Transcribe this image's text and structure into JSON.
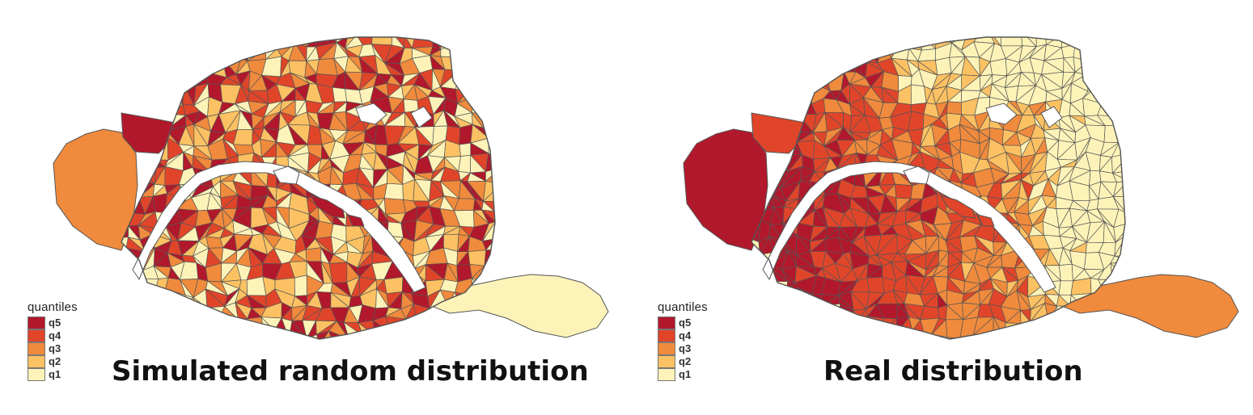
{
  "legend_title": "quantiles",
  "quantiles": [
    {
      "label": "q5",
      "color": "#b2182b"
    },
    {
      "label": "q4",
      "color": "#e0452a"
    },
    {
      "label": "q3",
      "color": "#f08a3c"
    },
    {
      "label": "q2",
      "color": "#fbc163"
    },
    {
      "label": "q1",
      "color": "#fdf3b8"
    }
  ],
  "maps": [
    {
      "id": "left",
      "caption": "Simulated random distribution",
      "pattern": "random"
    },
    {
      "id": "right",
      "caption": "Real distribution",
      "pattern": "west-high"
    }
  ],
  "colors": {
    "background": "#ffffff",
    "border": "#555555",
    "river": "#ffffff"
  }
}
